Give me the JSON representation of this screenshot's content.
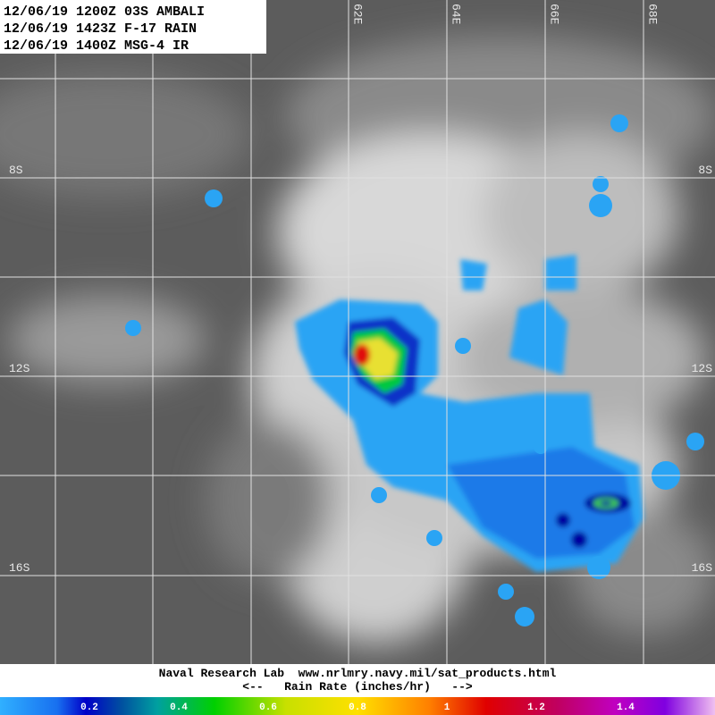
{
  "header": {
    "lines": [
      "12/06/19 1200Z 03S AMBALI",
      "12/06/19 1423Z F-17 RAIN",
      "12/06/19 1400Z MSG-4 IR"
    ]
  },
  "map": {
    "longitude_labels": [
      "62E",
      "64E",
      "66E",
      "68E"
    ],
    "latitude_labels": [
      "8S",
      "12S",
      "16S"
    ]
  },
  "footer": {
    "lines": [
      "Naval Research Lab  www.nrlmry.navy.mil/sat_products.html",
      "<--   Rain Rate (inches/hr)   -->"
    ]
  },
  "colorbar": {
    "labels": [
      "0.2",
      "0.4",
      "0.6",
      "0.8",
      "1",
      "1.2",
      "1.4"
    ]
  }
}
